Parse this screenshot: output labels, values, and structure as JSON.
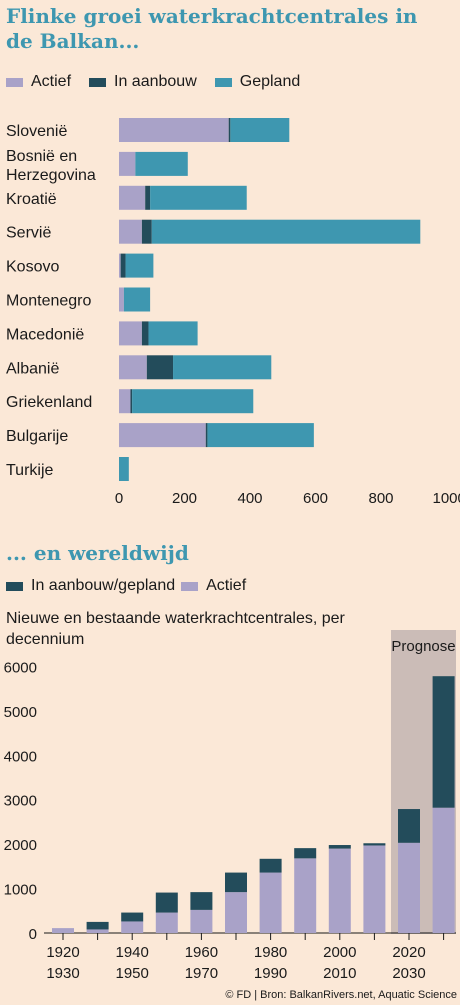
{
  "chart_data": [
    {
      "type": "bar",
      "orientation": "horizontal",
      "stacked": true,
      "title": "Flinke groei waterkrachtcentrales in de Balkan...",
      "categories": [
        "Slovenië",
        "Bosnië en Herzegovina",
        "Kroatië",
        "Servië",
        "Kosovo",
        "Montenegro",
        "Macedonië",
        "Albanië",
        "Griekenland",
        "Bulgarije",
        "Turkije"
      ],
      "series": [
        {
          "name": "Actief",
          "color": "#a9a2c8",
          "values": [
            335,
            50,
            80,
            70,
            5,
            15,
            70,
            85,
            35,
            265,
            0
          ]
        },
        {
          "name": "In aanbouw",
          "color": "#234c5b",
          "values": [
            5,
            0,
            15,
            30,
            15,
            0,
            20,
            80,
            5,
            5,
            0
          ]
        },
        {
          "name": "Gepland",
          "color": "#3e97b0",
          "values": [
            180,
            160,
            295,
            820,
            85,
            80,
            150,
            300,
            370,
            325,
            30
          ]
        }
      ],
      "xlim": [
        0,
        1000
      ],
      "xticks": [
        0,
        200,
        400,
        600,
        800,
        1000
      ],
      "legend_position": "top-left"
    },
    {
      "type": "bar",
      "stacked": true,
      "title": "... en wereldwijd",
      "subtitle": "Nieuwe en bestaande waterkrachtcentrales, per decennium",
      "categories": [
        "1920",
        "1930",
        "1940",
        "1950",
        "1960",
        "1970",
        "1980",
        "1990",
        "2000",
        "2010",
        "2020",
        "2030"
      ],
      "series": [
        {
          "name": "Actief",
          "color": "#a9a2c8",
          "values": [
            110,
            80,
            260,
            460,
            520,
            920,
            1360,
            1680,
            1900,
            1970,
            2030,
            2820
          ]
        },
        {
          "name": "In aanbouw/gepland",
          "color": "#234c5b",
          "values": [
            0,
            170,
            200,
            450,
            400,
            440,
            310,
            230,
            80,
            50,
            760,
            2960
          ]
        }
      ],
      "ylim": [
        0,
        6000
      ],
      "yticks": [
        0,
        1000,
        2000,
        3000,
        4000,
        5000,
        6000
      ],
      "xtick_rows": [
        [
          "1920",
          "1940",
          "1960",
          "1980",
          "2000",
          "2020"
        ],
        [
          "1930",
          "1950",
          "1970",
          "1990",
          "2010",
          "2030"
        ]
      ],
      "annotation": "Prognose",
      "legend_position": "top-left"
    }
  ],
  "source": "© FD | Bron: BalkanRivers.net, Aquatic Science"
}
